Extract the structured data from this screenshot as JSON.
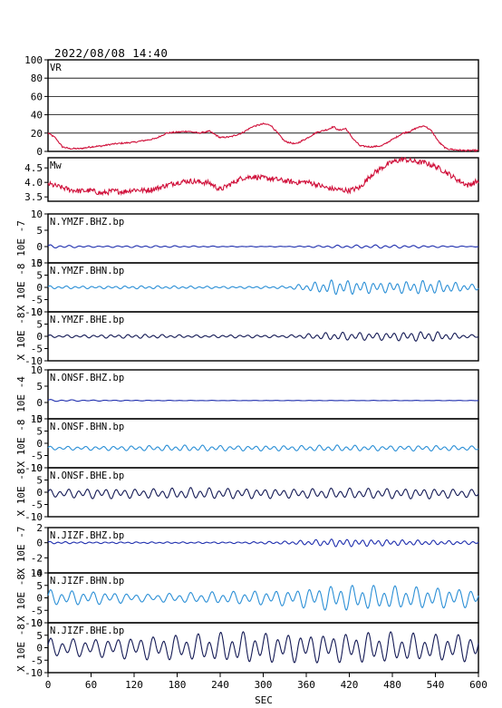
{
  "header": {
    "timestamp": "2022/08/08  14:40"
  },
  "colors": {
    "vr": "#d0103a",
    "mw": "#d0103a",
    "bhz": "#1f2fae",
    "bhn": "#2b8fd6",
    "bhe": "#141a55",
    "frame": "#000000",
    "grid": "#000000"
  },
  "chart_data": {
    "type": "line",
    "xlabel": "SEC",
    "xlim": [
      0,
      600
    ],
    "xticks": [
      "0",
      "60",
      "120",
      "180",
      "240",
      "300",
      "360",
      "420",
      "480",
      "540",
      "600"
    ],
    "panels": [
      {
        "id": "vr",
        "label": "VR",
        "color_key": "vr",
        "grid": true,
        "ylim": [
          0,
          100
        ],
        "yticks": [
          "0",
          "20",
          "40",
          "60",
          "80",
          "100"
        ],
        "ytick_values": [
          0,
          20,
          40,
          60,
          80,
          100
        ],
        "x": [
          0,
          10,
          20,
          30,
          45,
          60,
          75,
          90,
          105,
          120,
          135,
          150,
          165,
          180,
          195,
          210,
          225,
          240,
          255,
          270,
          285,
          300,
          310,
          320,
          330,
          345,
          360,
          375,
          390,
          398,
          405,
          415,
          425,
          435,
          450,
          465,
          480,
          495,
          505,
          515,
          525,
          535,
          545,
          555,
          565,
          580,
          600
        ],
        "y": [
          20,
          15,
          5,
          3,
          3,
          5,
          6,
          8,
          9,
          10,
          12,
          14,
          20,
          21,
          22,
          20,
          22,
          15,
          16,
          20,
          27,
          30,
          29,
          20,
          11,
          8,
          14,
          21,
          24,
          27,
          23,
          25,
          14,
          6,
          5,
          6,
          13,
          20,
          22,
          26,
          28,
          22,
          10,
          3,
          2,
          1,
          1
        ]
      },
      {
        "id": "mw",
        "label": "Mw",
        "color_key": "mw",
        "grid": false,
        "ylim": [
          3.35,
          4.85
        ],
        "yticks": [
          "3.5",
          "4.0",
          "4.5"
        ],
        "ytick_values": [
          3.5,
          4.0,
          4.5
        ],
        "x": [
          0,
          15,
          30,
          45,
          60,
          75,
          90,
          105,
          120,
          135,
          150,
          165,
          180,
          195,
          210,
          225,
          240,
          255,
          270,
          285,
          300,
          315,
          330,
          345,
          360,
          375,
          390,
          405,
          420,
          435,
          450,
          465,
          480,
          495,
          510,
          525,
          540,
          555,
          570,
          585,
          600
        ],
        "y": [
          3.95,
          3.85,
          3.75,
          3.7,
          3.72,
          3.62,
          3.7,
          3.68,
          3.75,
          3.72,
          3.78,
          3.9,
          4.0,
          4.05,
          4.02,
          3.98,
          3.75,
          3.95,
          4.15,
          4.2,
          4.15,
          4.12,
          4.05,
          4.0,
          4.02,
          3.92,
          3.8,
          3.75,
          3.72,
          3.82,
          4.25,
          4.5,
          4.7,
          4.8,
          4.72,
          4.68,
          4.55,
          4.35,
          4.1,
          3.9,
          4.05
        ]
      },
      {
        "id": "ymzf-bhz",
        "label": "N.YMZF.BHZ.bp",
        "color_key": "bhz",
        "scale": "10E -7",
        "ylim": [
          -5,
          10
        ],
        "yticks": [
          "-5",
          "0",
          "5",
          "10"
        ],
        "ytick_values": [
          -5,
          0,
          5,
          10
        ],
        "waveform": {
          "amplitudes": [
            0.5,
            0.2,
            0.3,
            0.2,
            0.1,
            0.1,
            0.4,
            0.5,
            0.3,
            0.1
          ],
          "cycles": 45,
          "offset": 0
        }
      },
      {
        "id": "ymzf-bhn",
        "label": "N.YMZF.BHN.bp",
        "color_key": "bhn",
        "scale": "X 10E -8",
        "ylim": [
          -10,
          10
        ],
        "yticks": [
          "-10",
          "-5",
          "0",
          "5",
          "10"
        ],
        "ytick_values": [
          -10,
          -5,
          0,
          5,
          10
        ],
        "waveform": {
          "amplitudes": [
            0.6,
            0.5,
            0.6,
            0.5,
            0.4,
            0.5,
            3.0,
            2.0,
            2.8,
            1.0
          ],
          "cycles": 52,
          "offset": 0
        }
      },
      {
        "id": "ymzf-bhe",
        "label": "N.YMZF.BHE.bp",
        "color_key": "bhe",
        "scale": "X 10E -8",
        "ylim": [
          -10,
          10
        ],
        "yticks": [
          "-10",
          "-5",
          "0",
          "5",
          "10"
        ],
        "ytick_values": [
          -10,
          -5,
          0,
          5,
          10
        ],
        "waveform": {
          "amplitudes": [
            0.5,
            0.6,
            0.8,
            0.5,
            0.6,
            0.5,
            1.6,
            1.5,
            2.0,
            0.4
          ],
          "cycles": 50,
          "offset": 0
        }
      },
      {
        "id": "onsf-bhz",
        "label": "N.ONSF.BHZ.bp",
        "color_key": "bhz",
        "scale": "10E -4",
        "ylim": [
          -5,
          10
        ],
        "yticks": [
          "-5",
          "0",
          "5",
          "10"
        ],
        "ytick_values": [
          -5,
          0,
          5,
          10
        ],
        "waveform": {
          "amplitudes": [
            0.3,
            0.15,
            0.1,
            0.05,
            0.05,
            0.05,
            0.05,
            0.05,
            0.05,
            0.05
          ],
          "cycles": 40,
          "offset": 0.6
        }
      },
      {
        "id": "onsf-bhn",
        "label": "N.ONSF.BHN.bp",
        "color_key": "bhn",
        "scale": "X 10E -8",
        "ylim": [
          -10,
          10
        ],
        "yticks": [
          "-10",
          "-5",
          "0",
          "5",
          "10"
        ],
        "ytick_values": [
          -10,
          -5,
          0,
          5,
          10
        ],
        "waveform": {
          "amplitudes": [
            0.7,
            0.8,
            1.0,
            1.2,
            1.0,
            1.0,
            1.2,
            1.0,
            1.1,
            0.8
          ],
          "cycles": 48,
          "offset": -2
        }
      },
      {
        "id": "onsf-bhe",
        "label": "N.ONSF.BHE.bp",
        "color_key": "bhe",
        "scale": "X 10E -8",
        "ylim": [
          -10,
          10
        ],
        "yticks": [
          "-10",
          "-5",
          "0",
          "5",
          "10"
        ],
        "ytick_values": [
          -10,
          -5,
          0,
          5,
          10
        ],
        "waveform": {
          "amplitudes": [
            1.5,
            2.0,
            1.8,
            2.2,
            2.0,
            1.8,
            2.0,
            2.0,
            2.0,
            1.5
          ],
          "cycles": 46,
          "offset": -0.5
        }
      },
      {
        "id": "jizf-bhz",
        "label": "N.JIZF.BHZ.bp",
        "color_key": "bhz",
        "scale": "X 10E -7",
        "ylim": [
          -4,
          2
        ],
        "yticks": [
          "-4",
          "-2",
          "0",
          "2"
        ],
        "ytick_values": [
          -4,
          -2,
          0,
          2
        ],
        "waveform": {
          "amplitudes": [
            0.15,
            0.1,
            0.1,
            0.1,
            0.1,
            0.2,
            0.5,
            0.4,
            0.3,
            0.2
          ],
          "cycles": 55,
          "offset": 0
        }
      },
      {
        "id": "jizf-bhn",
        "label": "N.JIZF.BHN.bp",
        "color_key": "bhn",
        "scale": "X 10E -8",
        "ylim": [
          -10,
          10
        ],
        "yticks": [
          "-10",
          "-5",
          "0",
          "5",
          "10"
        ],
        "ytick_values": [
          -10,
          -5,
          0,
          5,
          10
        ],
        "waveform": {
          "amplitudes": [
            3.0,
            2.5,
            1.5,
            2.0,
            2.5,
            3.0,
            5.0,
            4.5,
            4.0,
            3.5
          ],
          "cycles": 40,
          "offset": 0
        }
      },
      {
        "id": "jizf-bhe",
        "label": "N.JIZF.BHE.bp",
        "color_key": "bhe",
        "scale": "X 10E -8",
        "ylim": [
          -10,
          10
        ],
        "yticks": [
          "-10",
          "-5",
          "0",
          "5",
          "10"
        ],
        "ytick_values": [
          -10,
          -5,
          0,
          5,
          10
        ],
        "waveform": {
          "amplitudes": [
            3.5,
            3.5,
            4.5,
            5.0,
            6.0,
            5.5,
            5.5,
            6.0,
            5.0,
            5.5
          ],
          "cycles": 38,
          "offset": 0
        }
      }
    ]
  }
}
